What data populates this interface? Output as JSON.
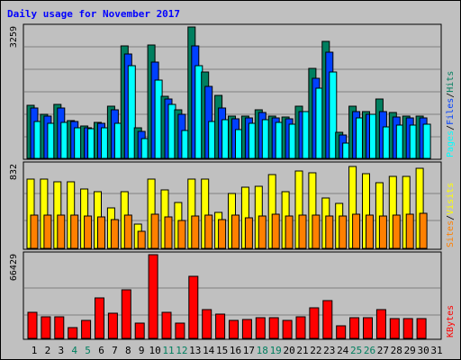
{
  "chart_data": {
    "type": "bar",
    "title": "Daily usage for November 2017",
    "categories": [
      "1",
      "2",
      "3",
      "4",
      "5",
      "6",
      "7",
      "8",
      "9",
      "10",
      "11",
      "12",
      "13",
      "14",
      "15",
      "16",
      "17",
      "18",
      "19",
      "20",
      "21",
      "22",
      "23",
      "24",
      "25",
      "26",
      "27",
      "28",
      "29",
      "30",
      "31"
    ],
    "weekend_days": [
      "4",
      "5",
      "11",
      "12",
      "18",
      "19",
      "25",
      "26"
    ],
    "panels": [
      {
        "name": "hits-files-pages",
        "ymax_label": "3259",
        "ylim": [
          0,
          3259
        ],
        "series": [
          {
            "name": "Hits",
            "color": "#007f5f",
            "values": [
              1320,
              1100,
              1340,
              940,
              800,
              900,
              1300,
              2800,
              760,
              2810,
              1550,
              1200,
              3259,
              2150,
              1570,
              1040,
              1060,
              1210,
              1060,
              1020,
              1300,
              2240,
              2900,
              650,
              1300,
              1160,
              1470,
              1130,
              1060,
              1060,
              0
            ]
          },
          {
            "name": "Files",
            "color": "#0040ff",
            "values": [
              1260,
              1040,
              1240,
              920,
              760,
              860,
              1210,
              2600,
              660,
              2390,
              1480,
              1090,
              2780,
              1790,
              1240,
              990,
              1010,
              1140,
              1010,
              980,
              1170,
              1980,
              2630,
              580,
              1150,
              1090,
              1160,
              1030,
              1000,
              1000,
              0
            ]
          },
          {
            "name": "Pages",
            "color": "#00ffff",
            "values": [
              910,
              860,
              900,
              770,
              730,
              770,
              880,
              2300,
              480,
              1940,
              1330,
              690,
              2310,
              920,
              970,
              710,
              860,
              950,
              890,
              850,
              1150,
              1750,
              2140,
              390,
              1010,
              1090,
              790,
              830,
              820,
              850,
              0
            ]
          }
        ],
        "right_labels": [
          {
            "text": "Pages",
            "color": "#00ffff"
          },
          {
            "text": "/",
            "color": "#000000"
          },
          {
            "text": "Files",
            "color": "#0040ff"
          },
          {
            "text": "/",
            "color": "#000000"
          },
          {
            "text": "Hits",
            "color": "#007f5f"
          }
        ]
      },
      {
        "name": "visits-sites",
        "ymax_label": "832",
        "ylim": [
          0,
          832
        ],
        "series": [
          {
            "name": "Visits",
            "color": "#ffff00",
            "values": [
              690,
              690,
              660,
              660,
              590,
              560,
              400,
              560,
              240,
              690,
              580,
              460,
              690,
              690,
              360,
              550,
              610,
              620,
              730,
              560,
              770,
              750,
              500,
              450,
              810,
              740,
              650,
              720,
              720,
              800,
              0
            ]
          },
          {
            "name": "Sites",
            "color": "#ff8000",
            "values": [
              330,
              330,
              330,
              330,
              320,
              310,
              290,
              330,
              170,
              340,
              310,
              280,
              320,
              330,
              290,
              330,
              300,
              320,
              340,
              320,
              330,
              330,
              320,
              320,
              340,
              330,
              320,
              330,
              340,
              350,
              0
            ]
          }
        ],
        "right_labels": [
          {
            "text": "Sites",
            "color": "#ff8000"
          },
          {
            "text": "/",
            "color": "#000000"
          },
          {
            "text": "Visits",
            "color": "#ffff00"
          }
        ]
      },
      {
        "name": "kbytes",
        "ymax_label": "66429",
        "ylim": [
          0,
          66429
        ],
        "series": [
          {
            "name": "KBytes",
            "color": "#ff0000",
            "values": [
              21000,
              17500,
              17500,
              8500,
              14500,
              32000,
              20000,
              38500,
              12500,
              66429,
              21000,
              12500,
              49000,
              23000,
              19000,
              14500,
              15000,
              16500,
              16500,
              14500,
              17500,
              24500,
              30000,
              10000,
              16500,
              16500,
              23000,
              16000,
              16000,
              16000,
              0
            ]
          }
        ],
        "right_labels": [
          {
            "text": "KBytes",
            "color": "#ff0000"
          }
        ]
      }
    ]
  }
}
